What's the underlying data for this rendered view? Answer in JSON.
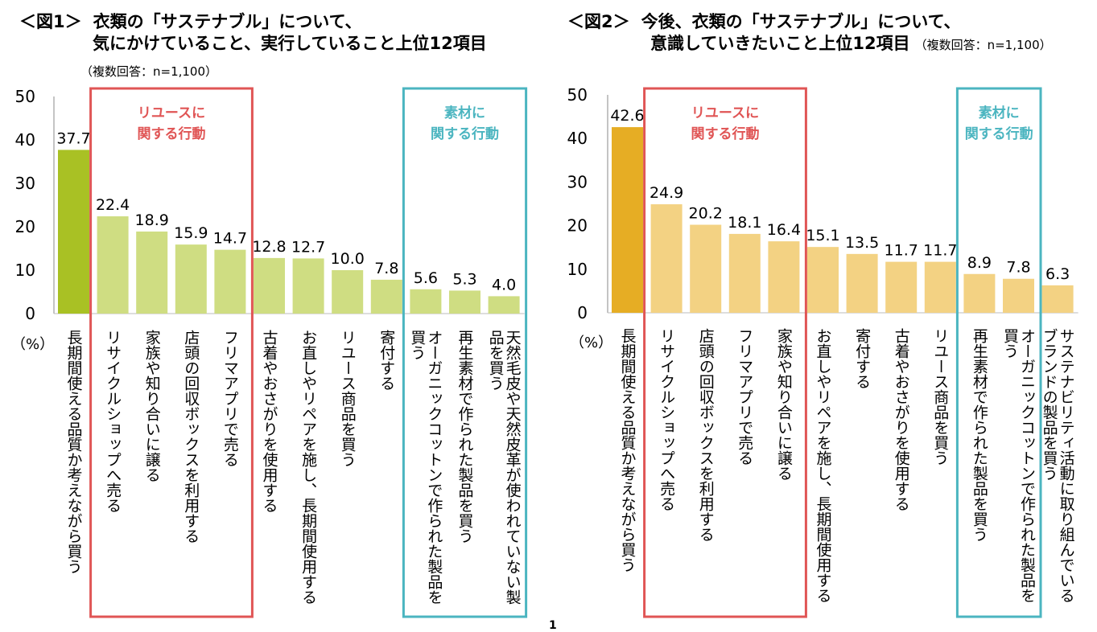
{
  "page_number": "1",
  "chart_data": [
    {
      "type": "bar",
      "tag": "＜図1＞",
      "title_lines": [
        "衣類の「サステナブル」について、",
        "気にかけていること、実行していること上位12項目"
      ],
      "note": "（複数回答：n=1,100）",
      "ylabel": "（%）",
      "ylim": [
        0,
        50
      ],
      "yticks": [
        0,
        10,
        20,
        30,
        40,
        50
      ],
      "categories": [
        "長期間使える品質か考えながら買う",
        "リサイクルショップへ売る",
        "家族や知り合いに譲る",
        "店頭の回収ボックスを利用する",
        "フリマアプリで売る",
        "古着やおさがりを使用する",
        "お直しやリペアを施し、長期間使用する",
        "リユース商品を買う",
        "寄付する",
        "オーガニックコットンで作られた製品を買う",
        "再生素材で作られた製品を買う",
        "天然毛皮や天然皮革が使われていない製品を買う"
      ],
      "values": [
        37.7,
        22.4,
        18.9,
        15.9,
        14.7,
        12.8,
        12.7,
        10.0,
        7.8,
        5.6,
        5.3,
        4.0
      ],
      "value_labels": [
        "37.7",
        "22.4",
        "18.9",
        "15.9",
        "14.7",
        "12.8",
        "12.7",
        "10.0",
        "7.8",
        "5.6",
        "5.3",
        "4.0"
      ],
      "highlight_color": "#a9c124",
      "bar_color": "#cfdd82",
      "groups": [
        {
          "label_lines": [
            "リユースに",
            "関する行動"
          ],
          "color": "#e05555",
          "from": 1,
          "to": 4
        },
        {
          "label_lines": [
            "素材に",
            "関する行動"
          ],
          "color": "#4bb5c0",
          "from": 9,
          "to": 11
        }
      ]
    },
    {
      "type": "bar",
      "tag": "＜図2＞",
      "title_lines": [
        "今後、衣類の「サステナブル」について、",
        "意識していきたいこと上位12項目"
      ],
      "note": "（複数回答：n=1,100）",
      "ylabel": "（%）",
      "ylim": [
        0,
        50
      ],
      "yticks": [
        0,
        10,
        20,
        30,
        40,
        50
      ],
      "categories": [
        "長期間使える品質か考えながら買う",
        "リサイクルショップへ売る",
        "店頭の回収ボックスを利用する",
        "フリマアプリで売る",
        "家族や知り合いに譲る",
        "お直しやリペアを施し、長期間使用する",
        "寄付する",
        "古着やおさがりを使用する",
        "リユース商品を買う",
        "再生素材で作られた製品を買う",
        "オーガニックコットンで作られた製品を買う",
        "サステナビリティ活動に取り組んでいるブランドの製品を買う"
      ],
      "values": [
        42.6,
        24.9,
        20.2,
        18.1,
        16.4,
        15.1,
        13.5,
        11.7,
        11.7,
        8.9,
        7.8,
        6.3
      ],
      "value_labels": [
        "42.6",
        "24.9",
        "20.2",
        "18.1",
        "16.4",
        "15.1",
        "13.5",
        "11.7",
        "11.7",
        "8.9",
        "7.8",
        "6.3"
      ],
      "highlight_color": "#e6ad24",
      "bar_color": "#f3d283",
      "groups": [
        {
          "label_lines": [
            "リユースに",
            "関する行動"
          ],
          "color": "#e05555",
          "from": 1,
          "to": 4
        },
        {
          "label_lines": [
            "素材に",
            "関する行動"
          ],
          "color": "#4bb5c0",
          "from": 9,
          "to": 10
        }
      ]
    }
  ]
}
